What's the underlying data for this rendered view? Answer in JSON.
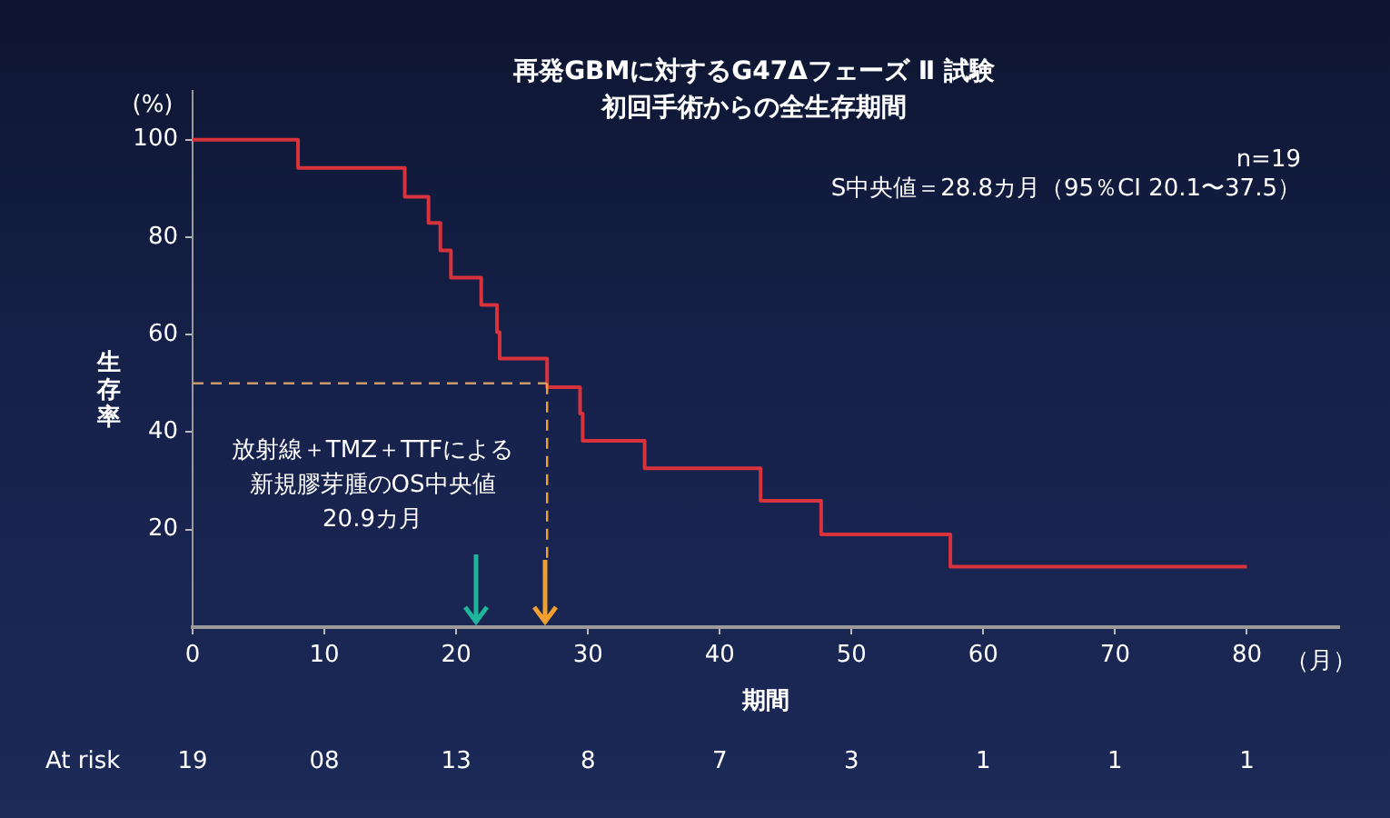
{
  "chart_data": {
    "type": "step",
    "title": "再発GBMに対するG47Δフェーズ Ⅱ 試験",
    "subtitle": "初回手術からの全生存期間",
    "xlabel": "期間",
    "ylabel": "生存率",
    "x": [
      0,
      8.0,
      16.1,
      17.9,
      18.8,
      19.6,
      21.9,
      23.1,
      23.3,
      26.9,
      29.4,
      29.6,
      34.3,
      43.1,
      47.7,
      57.5,
      80
    ],
    "series": [
      {
        "color": "#d8323c",
        "values": [
          100,
          94.2,
          88.3,
          82.9,
          77.3,
          71.7,
          66.1,
          60.5,
          55.1,
          49.2,
          43.8,
          38.2,
          32.6,
          25.9,
          19.0,
          12.4,
          12.4
        ]
      }
    ],
    "xlim": [
      0,
      87
    ],
    "xticks": [
      0,
      10,
      20,
      30,
      40,
      50,
      60,
      70,
      80
    ],
    "ylim": [
      0,
      110
    ],
    "yticks": [
      20,
      40,
      60,
      80,
      100
    ],
    "ref_lines": [
      {
        "axis": "y",
        "value": 50,
        "label": null,
        "color": "#c99a6a",
        "line_style": "dashed"
      },
      {
        "axis": "x",
        "value": 26.9,
        "label": null,
        "color": "#f0a030",
        "line_style": "dashed"
      }
    ],
    "annotations": [
      "放射線＋TMZ＋TTFによる",
      "新規膠芽腫のOS中央値",
      "20.9カ月",
      "n=19",
      "S中央値＝28.8カ月（95％CI 20.1〜37.5）",
      "(%)",
      "（月）",
      "At risk",
      "19",
      "08",
      "13",
      "8",
      "7",
      "3",
      "1",
      "1",
      "1"
    ],
    "grid": false,
    "legend": false,
    "marker": "none",
    "line_style": "solid"
  }
}
